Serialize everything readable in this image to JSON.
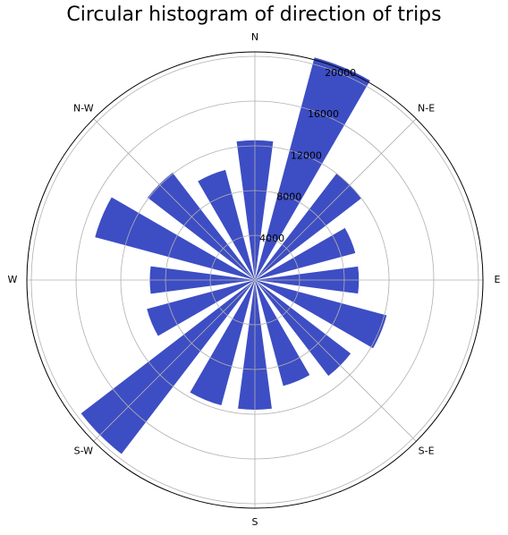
{
  "chart_data": {
    "type": "bar",
    "subtype": "polar-histogram",
    "title": "Circular histogram of direction of trips",
    "direction_labels": [
      "N",
      "N-E",
      "E",
      "S-E",
      "S",
      "S-W",
      "W",
      "N-W"
    ],
    "direction_angles_deg": [
      0,
      45,
      90,
      135,
      180,
      225,
      270,
      315
    ],
    "radial_ticks": [
      4000,
      8000,
      12000,
      16000,
      20000
    ],
    "rlim": [
      0,
      20400
    ],
    "bin_width_deg": 15,
    "bin_centers_deg": [
      0,
      22.5,
      45,
      67.5,
      90,
      112.5,
      135,
      157.5,
      180,
      202.5,
      225,
      247.5,
      270,
      292.5,
      315,
      337.5
    ],
    "values": [
      12500,
      20600,
      12000,
      9300,
      9300,
      12200,
      10800,
      9800,
      11600,
      11600,
      19600,
      10000,
      9400,
      14800,
      12100,
      10200
    ],
    "grid": true,
    "colors": {
      "bar": "#3d4dc4",
      "grid": "#b0b0b0",
      "frame": "#000000"
    }
  }
}
